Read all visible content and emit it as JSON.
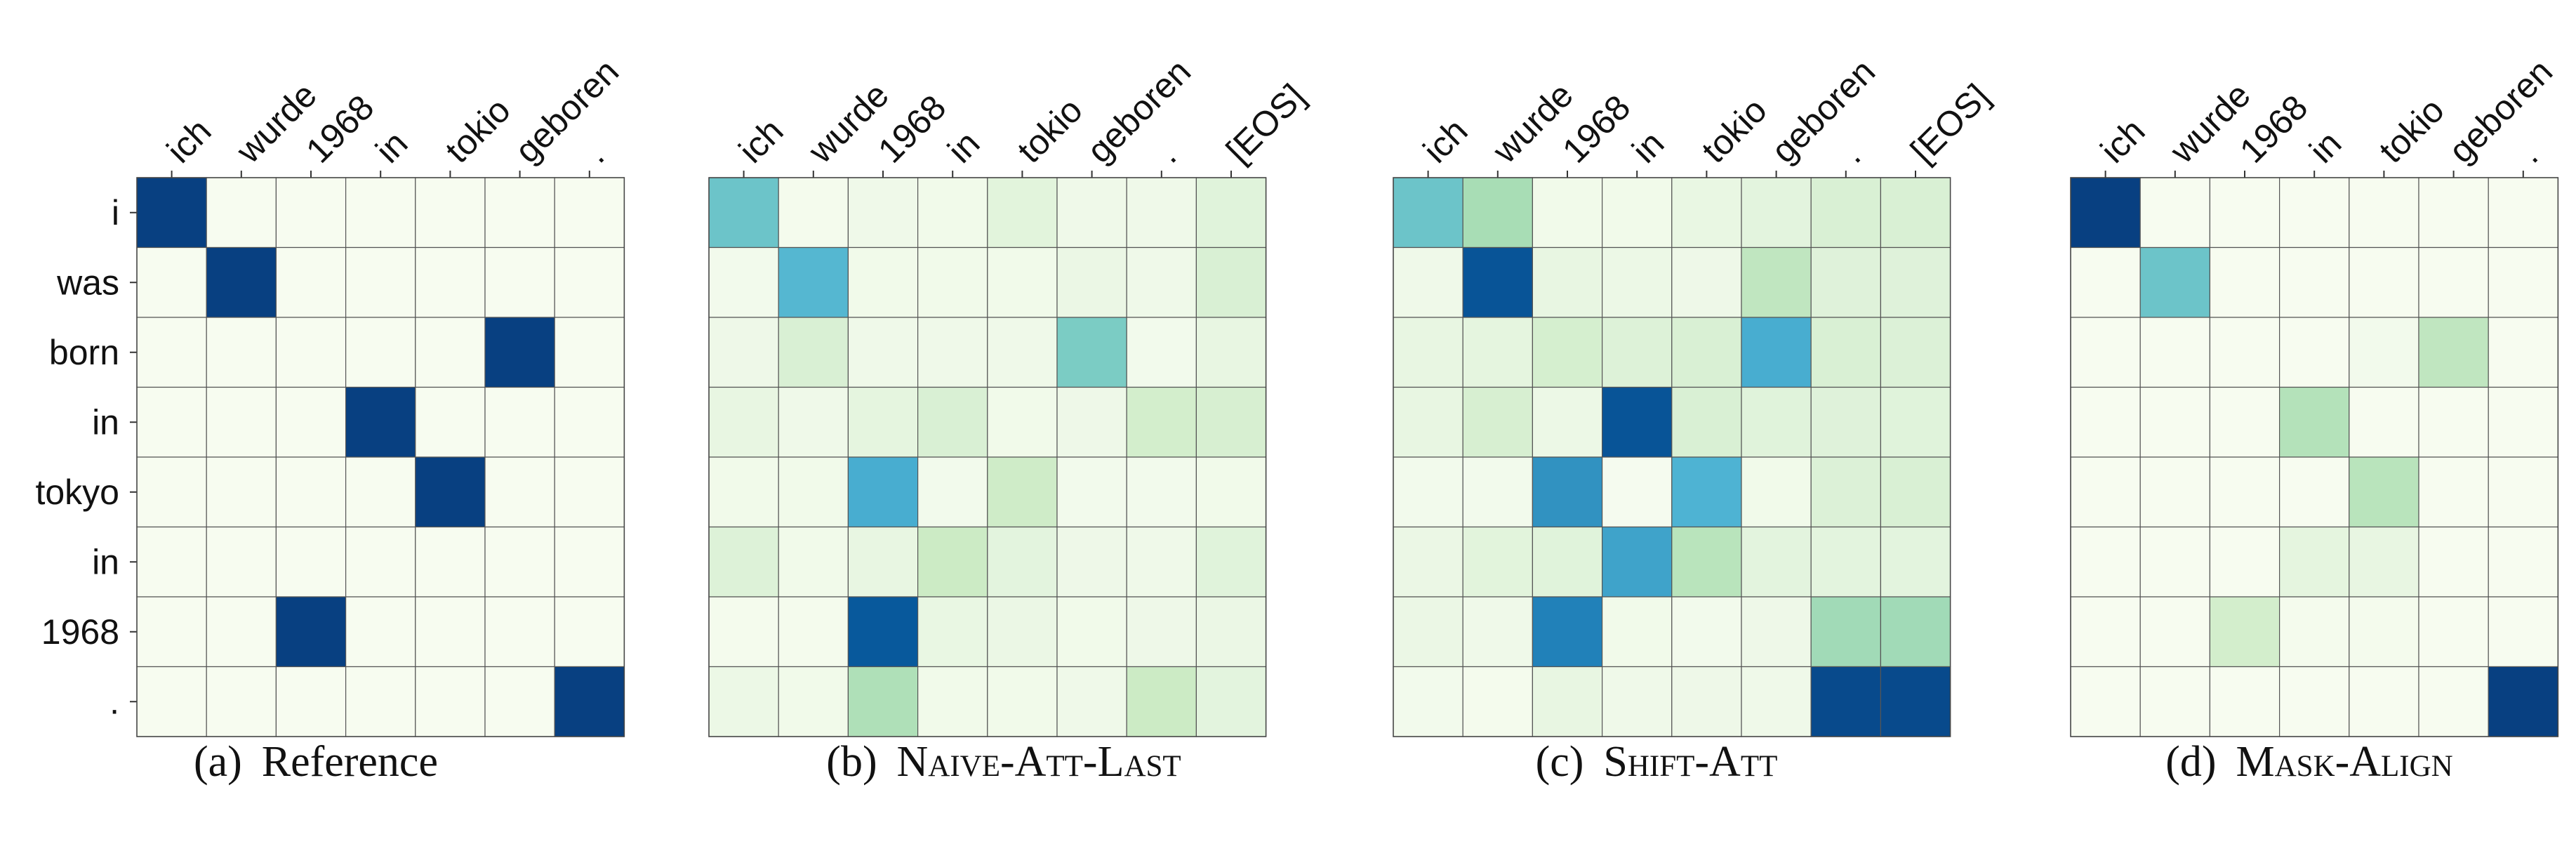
{
  "chart_data": [
    {
      "type": "heatmap",
      "caption_label": "(a)",
      "caption_title": "Reference",
      "x_categories": [
        "ich",
        "wurde",
        "1968",
        "in",
        "tokio",
        "geboren",
        "."
      ],
      "y_categories": [
        "i",
        "was",
        "born",
        "in",
        "tokyo",
        "in",
        "1968",
        "."
      ],
      "values": [
        [
          1,
          0,
          0,
          0,
          0,
          0,
          0
        ],
        [
          0,
          1,
          0,
          0,
          0,
          0,
          0
        ],
        [
          0,
          0,
          0,
          0,
          0,
          1,
          0
        ],
        [
          0,
          0,
          0,
          1,
          0,
          0,
          0
        ],
        [
          0,
          0,
          0,
          0,
          1,
          0,
          0
        ],
        [
          0,
          0,
          0,
          0,
          0,
          0,
          0
        ],
        [
          0,
          0,
          1,
          0,
          0,
          0,
          0
        ],
        [
          0,
          0,
          0,
          0,
          0,
          0,
          1
        ]
      ]
    },
    {
      "type": "heatmap",
      "caption_label": "(b)",
      "caption_title": "Naive-Att-Last",
      "x_categories": [
        "ich",
        "wurde",
        "1968",
        "in",
        "tokio",
        "geboren",
        ".",
        "[EOS]"
      ],
      "y_categories": [
        "i",
        "was",
        "born",
        "in",
        "tokyo",
        "in",
        "1968",
        "."
      ],
      "values": [
        [
          0.62,
          0.02,
          0.05,
          0.04,
          0.14,
          0.05,
          0.05,
          0.15
        ],
        [
          0.03,
          0.68,
          0.04,
          0.04,
          0.04,
          0.08,
          0.05,
          0.2
        ],
        [
          0.06,
          0.2,
          0.05,
          0.05,
          0.05,
          0.58,
          0.03,
          0.1
        ],
        [
          0.1,
          0.05,
          0.12,
          0.2,
          0.04,
          0.06,
          0.25,
          0.22
        ],
        [
          0.04,
          0.04,
          0.72,
          0.03,
          0.28,
          0.03,
          0.03,
          0.04
        ],
        [
          0.17,
          0.04,
          0.1,
          0.3,
          0.13,
          0.06,
          0.05,
          0.15
        ],
        [
          0.02,
          0.02,
          0.95,
          0.09,
          0.08,
          0.04,
          0.06,
          0.08
        ],
        [
          0.07,
          0.04,
          0.42,
          0.04,
          0.04,
          0.05,
          0.3,
          0.13
        ]
      ]
    },
    {
      "type": "heatmap",
      "caption_label": "(c)",
      "caption_title": "Shift-Att",
      "x_categories": [
        "ich",
        "wurde",
        "1968",
        "in",
        "tokio",
        "geboren",
        ".",
        "[EOS]"
      ],
      "y_categories": [
        "i",
        "was",
        "born",
        "in",
        "tokyo",
        "in",
        "1968",
        "."
      ],
      "values": [
        [
          0.62,
          0.45,
          0.04,
          0.04,
          0.09,
          0.13,
          0.2,
          0.2
        ],
        [
          0.05,
          0.96,
          0.1,
          0.07,
          0.06,
          0.35,
          0.16,
          0.16
        ],
        [
          0.1,
          0.12,
          0.23,
          0.17,
          0.2,
          0.72,
          0.2,
          0.18
        ],
        [
          0.1,
          0.22,
          0.07,
          0.96,
          0.2,
          0.15,
          0.16,
          0.15
        ],
        [
          0.03,
          0.03,
          0.8,
          0.01,
          0.7,
          0.04,
          0.18,
          0.2
        ],
        [
          0.08,
          0.14,
          0.15,
          0.75,
          0.38,
          0.13,
          0.13,
          0.13
        ],
        [
          0.08,
          0.05,
          0.85,
          0.04,
          0.03,
          0.06,
          0.47,
          0.47
        ],
        [
          0.03,
          0.02,
          0.1,
          0.05,
          0.06,
          0.05,
          0.98,
          0.98
        ]
      ]
    },
    {
      "type": "heatmap",
      "caption_label": "(d)",
      "caption_title": "Mask-Align",
      "x_categories": [
        "ich",
        "wurde",
        "1968",
        "in",
        "tokio",
        "geboren",
        "."
      ],
      "y_categories": [
        "i",
        "was",
        "born",
        "in",
        "tokyo",
        "in",
        "1968",
        "."
      ],
      "values": [
        [
          1,
          0,
          0,
          0,
          0,
          0,
          0
        ],
        [
          0,
          0.62,
          0,
          0,
          0,
          0,
          0
        ],
        [
          0,
          0,
          0,
          0,
          0.03,
          0.35,
          0
        ],
        [
          0,
          0,
          0,
          0.4,
          0,
          0,
          0
        ],
        [
          0,
          0,
          0,
          0,
          0.38,
          0,
          0
        ],
        [
          0,
          0,
          0,
          0.12,
          0.1,
          0,
          0
        ],
        [
          0,
          0,
          0.25,
          0.02,
          0.02,
          0,
          0
        ],
        [
          0,
          0,
          0,
          0,
          0,
          0,
          1
        ]
      ]
    }
  ]
}
